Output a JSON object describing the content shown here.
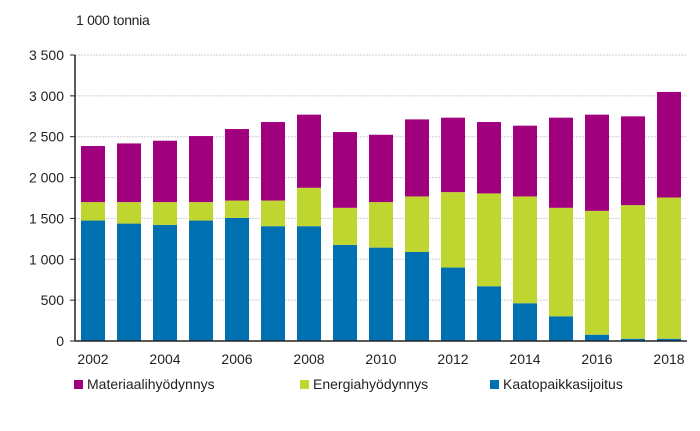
{
  "chart_data": {
    "type": "bar",
    "stacked": true,
    "title": "",
    "unit_label": "1 000 tonnia",
    "xlabel": "",
    "ylabel": "1 000 tonnia",
    "ylim": [
      0,
      3500
    ],
    "yticks": [
      0,
      500,
      1000,
      1500,
      2000,
      2500,
      3000,
      3500
    ],
    "ytick_labels": [
      "0",
      "500",
      "1 000",
      "1 500",
      "2 000",
      "2 500",
      "3 000",
      "3 500"
    ],
    "grid": true,
    "legend_position": "bottom",
    "categories": [
      "2002",
      "2003",
      "2004",
      "2005",
      "2006",
      "2007",
      "2008",
      "2009",
      "2010",
      "2011",
      "2012",
      "2013",
      "2014",
      "2015",
      "2016",
      "2017",
      "2018"
    ],
    "xtick_labels": [
      "2002",
      "2004",
      "2006",
      "2008",
      "2010",
      "2012",
      "2014",
      "2016",
      "2018"
    ],
    "series": [
      {
        "name": "Kaatopaikkasijoitus",
        "color": "#0070B0",
        "values": [
          1474,
          1437,
          1421,
          1474,
          1507,
          1405,
          1405,
          1176,
          1143,
          1090,
          899,
          670,
          462,
          302,
          77,
          28,
          28
        ]
      },
      {
        "name": "Energiahyödynnys",
        "color": "#C0D630",
        "values": [
          226,
          263,
          279,
          226,
          212,
          314,
          470,
          454,
          557,
          679,
          923,
          1136,
          1307,
          1328,
          1516,
          1635,
          1728
        ]
      },
      {
        "name": "Materiaalihyödynnys",
        "color": "#A0007E",
        "values": [
          686,
          718,
          751,
          808,
          875,
          961,
          895,
          927,
          824,
          943,
          911,
          874,
          866,
          1103,
          1177,
          1086,
          1292
        ]
      }
    ],
    "legend_order": [
      "Materiaalihyödynnys",
      "Energiahyödynnys",
      "Kaatopaikkasijoitus"
    ]
  }
}
